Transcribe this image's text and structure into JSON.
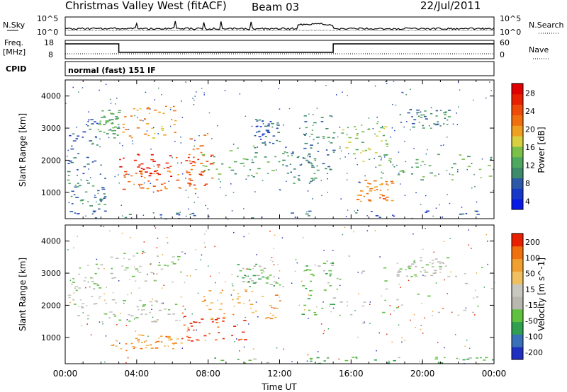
{
  "header": {
    "station": "Christmas Valley West (fitACF)",
    "beam": "Beam 03",
    "date": "22/Jul/2011"
  },
  "top_panels": {
    "nsky_label": "N.Sky",
    "nsky_ticks": [
      "10^5",
      "10^0"
    ],
    "nsearch_label": "N.Search",
    "freq_label_1": "Freq.",
    "freq_label_2": "[MHz]",
    "freq_ticks": [
      "18",
      "8"
    ],
    "nave_label": "Nave",
    "nave_ticks": [
      "60",
      "0"
    ],
    "cpid_label": "CPID",
    "cpid_text": "normal (fast) 151 IF"
  },
  "chart_data": [
    {
      "type": "heatmap",
      "name": "power",
      "ylabel": "Slant Range [km]",
      "ylim": [
        180,
        4500
      ],
      "yticks": [
        "1000",
        "2000",
        "3000",
        "4000"
      ],
      "xlim": [
        "00:00",
        "24:00"
      ],
      "colorbar": {
        "label": "Power [dB]",
        "ticks": [
          "28",
          "24",
          "20",
          "16",
          "12",
          "8",
          "4"
        ],
        "colors": [
          "#0a1ae6",
          "#1838c8",
          "#2d58a8",
          "#3f8a6a",
          "#4fa860",
          "#7cc04a",
          "#d8d040",
          "#f0a020",
          "#f07010",
          "#f04a08",
          "#e82000",
          "#e00000"
        ]
      },
      "echo_regions": [
        {
          "t0": 0.1,
          "t1": 2.0,
          "r0": 1500,
          "r1": 3300,
          "level": 2
        },
        {
          "t0": 0.1,
          "t1": 2.2,
          "r0": 300,
          "r1": 1500,
          "level": 3
        },
        {
          "t0": 1.8,
          "t1": 3.0,
          "r0": 2700,
          "r1": 3600,
          "level": 4
        },
        {
          "t0": 3.0,
          "t1": 6.2,
          "r0": 2700,
          "r1": 3700,
          "level": 7
        },
        {
          "t0": 2.9,
          "t1": 6.8,
          "r0": 1500,
          "r1": 2200,
          "level": 10
        },
        {
          "t0": 3.2,
          "t1": 7.6,
          "r0": 1000,
          "r1": 1700,
          "level": 8
        },
        {
          "t0": 6.8,
          "t1": 8.2,
          "r0": 1200,
          "r1": 3000,
          "level": 9
        },
        {
          "t0": 7.5,
          "t1": 12.0,
          "r0": 1500,
          "r1": 2500,
          "level": 4
        },
        {
          "t0": 10.5,
          "t1": 12.0,
          "r0": 2500,
          "r1": 3300,
          "level": 2
        },
        {
          "t0": 12.0,
          "t1": 14.0,
          "r0": 1300,
          "r1": 2300,
          "level": 3
        },
        {
          "t0": 13.3,
          "t1": 15.2,
          "r0": 1700,
          "r1": 3400,
          "level": 3
        },
        {
          "t0": 15.3,
          "t1": 18.0,
          "r0": 1900,
          "r1": 3200,
          "level": 5
        },
        {
          "t0": 16.3,
          "t1": 18.3,
          "r0": 700,
          "r1": 1400,
          "level": 8
        },
        {
          "t0": 17.5,
          "t1": 24.0,
          "r0": 1400,
          "r1": 2200,
          "level": 4
        },
        {
          "t0": 18.5,
          "t1": 21.5,
          "r0": 3000,
          "r1": 3600,
          "level": 3
        },
        {
          "t0": 0.0,
          "t1": 24.0,
          "r0": 180,
          "r1": 450,
          "level": 2
        }
      ]
    },
    {
      "type": "heatmap",
      "name": "velocity",
      "ylabel": "Slant Range [km]",
      "ylim": [
        180,
        4500
      ],
      "yticks": [
        "1000",
        "2000",
        "3000",
        "4000"
      ],
      "xlabel": "Time UT",
      "xlim": [
        "00:00",
        "24:00"
      ],
      "xticks": [
        "00:00",
        "04:00",
        "08:00",
        "12:00",
        "16:00",
        "20:00",
        "00:00"
      ],
      "colorbar": {
        "label": "Velocity [m s^-1]",
        "ticks": [
          "200",
          "100",
          "50",
          "15",
          "-15",
          "-50",
          "-100",
          "-200"
        ],
        "colors": [
          "#2030c0",
          "#3a70b8",
          "#30a050",
          "#60c040",
          "#b8b8b0",
          "#c8c8c0",
          "#f0c060",
          "#f0a030",
          "#f07010",
          "#e82000"
        ]
      },
      "echo_regions": [
        {
          "t0": 0.1,
          "t1": 2.0,
          "r0": 1600,
          "r1": 3300,
          "level": 4
        },
        {
          "t0": 2.0,
          "t1": 6.2,
          "r0": 1500,
          "r1": 2200,
          "level": 4
        },
        {
          "t0": 2.5,
          "t1": 6.5,
          "r0": 2700,
          "r1": 3700,
          "level": 4
        },
        {
          "t0": 2.5,
          "t1": 6.5,
          "r0": 600,
          "r1": 1100,
          "level": 7
        },
        {
          "t0": 6.5,
          "t1": 10.0,
          "r0": 900,
          "r1": 1900,
          "level": 9
        },
        {
          "t0": 7.5,
          "t1": 12.0,
          "r0": 1600,
          "r1": 2500,
          "level": 7
        },
        {
          "t0": 9.5,
          "t1": 12.0,
          "r0": 2600,
          "r1": 3300,
          "level": 3
        },
        {
          "t0": 13.2,
          "t1": 15.2,
          "r0": 1700,
          "r1": 3400,
          "level": 3
        },
        {
          "t0": 15.3,
          "t1": 24.0,
          "r0": 1400,
          "r1": 3200,
          "level": 4
        },
        {
          "t0": 18.5,
          "t1": 21.5,
          "r0": 2900,
          "r1": 3500,
          "level": 4
        },
        {
          "t0": 8.0,
          "t1": 24.0,
          "r0": 180,
          "r1": 400,
          "level": 3
        }
      ]
    }
  ],
  "colors": {
    "axis": "#000000",
    "background": "#ffffff"
  }
}
